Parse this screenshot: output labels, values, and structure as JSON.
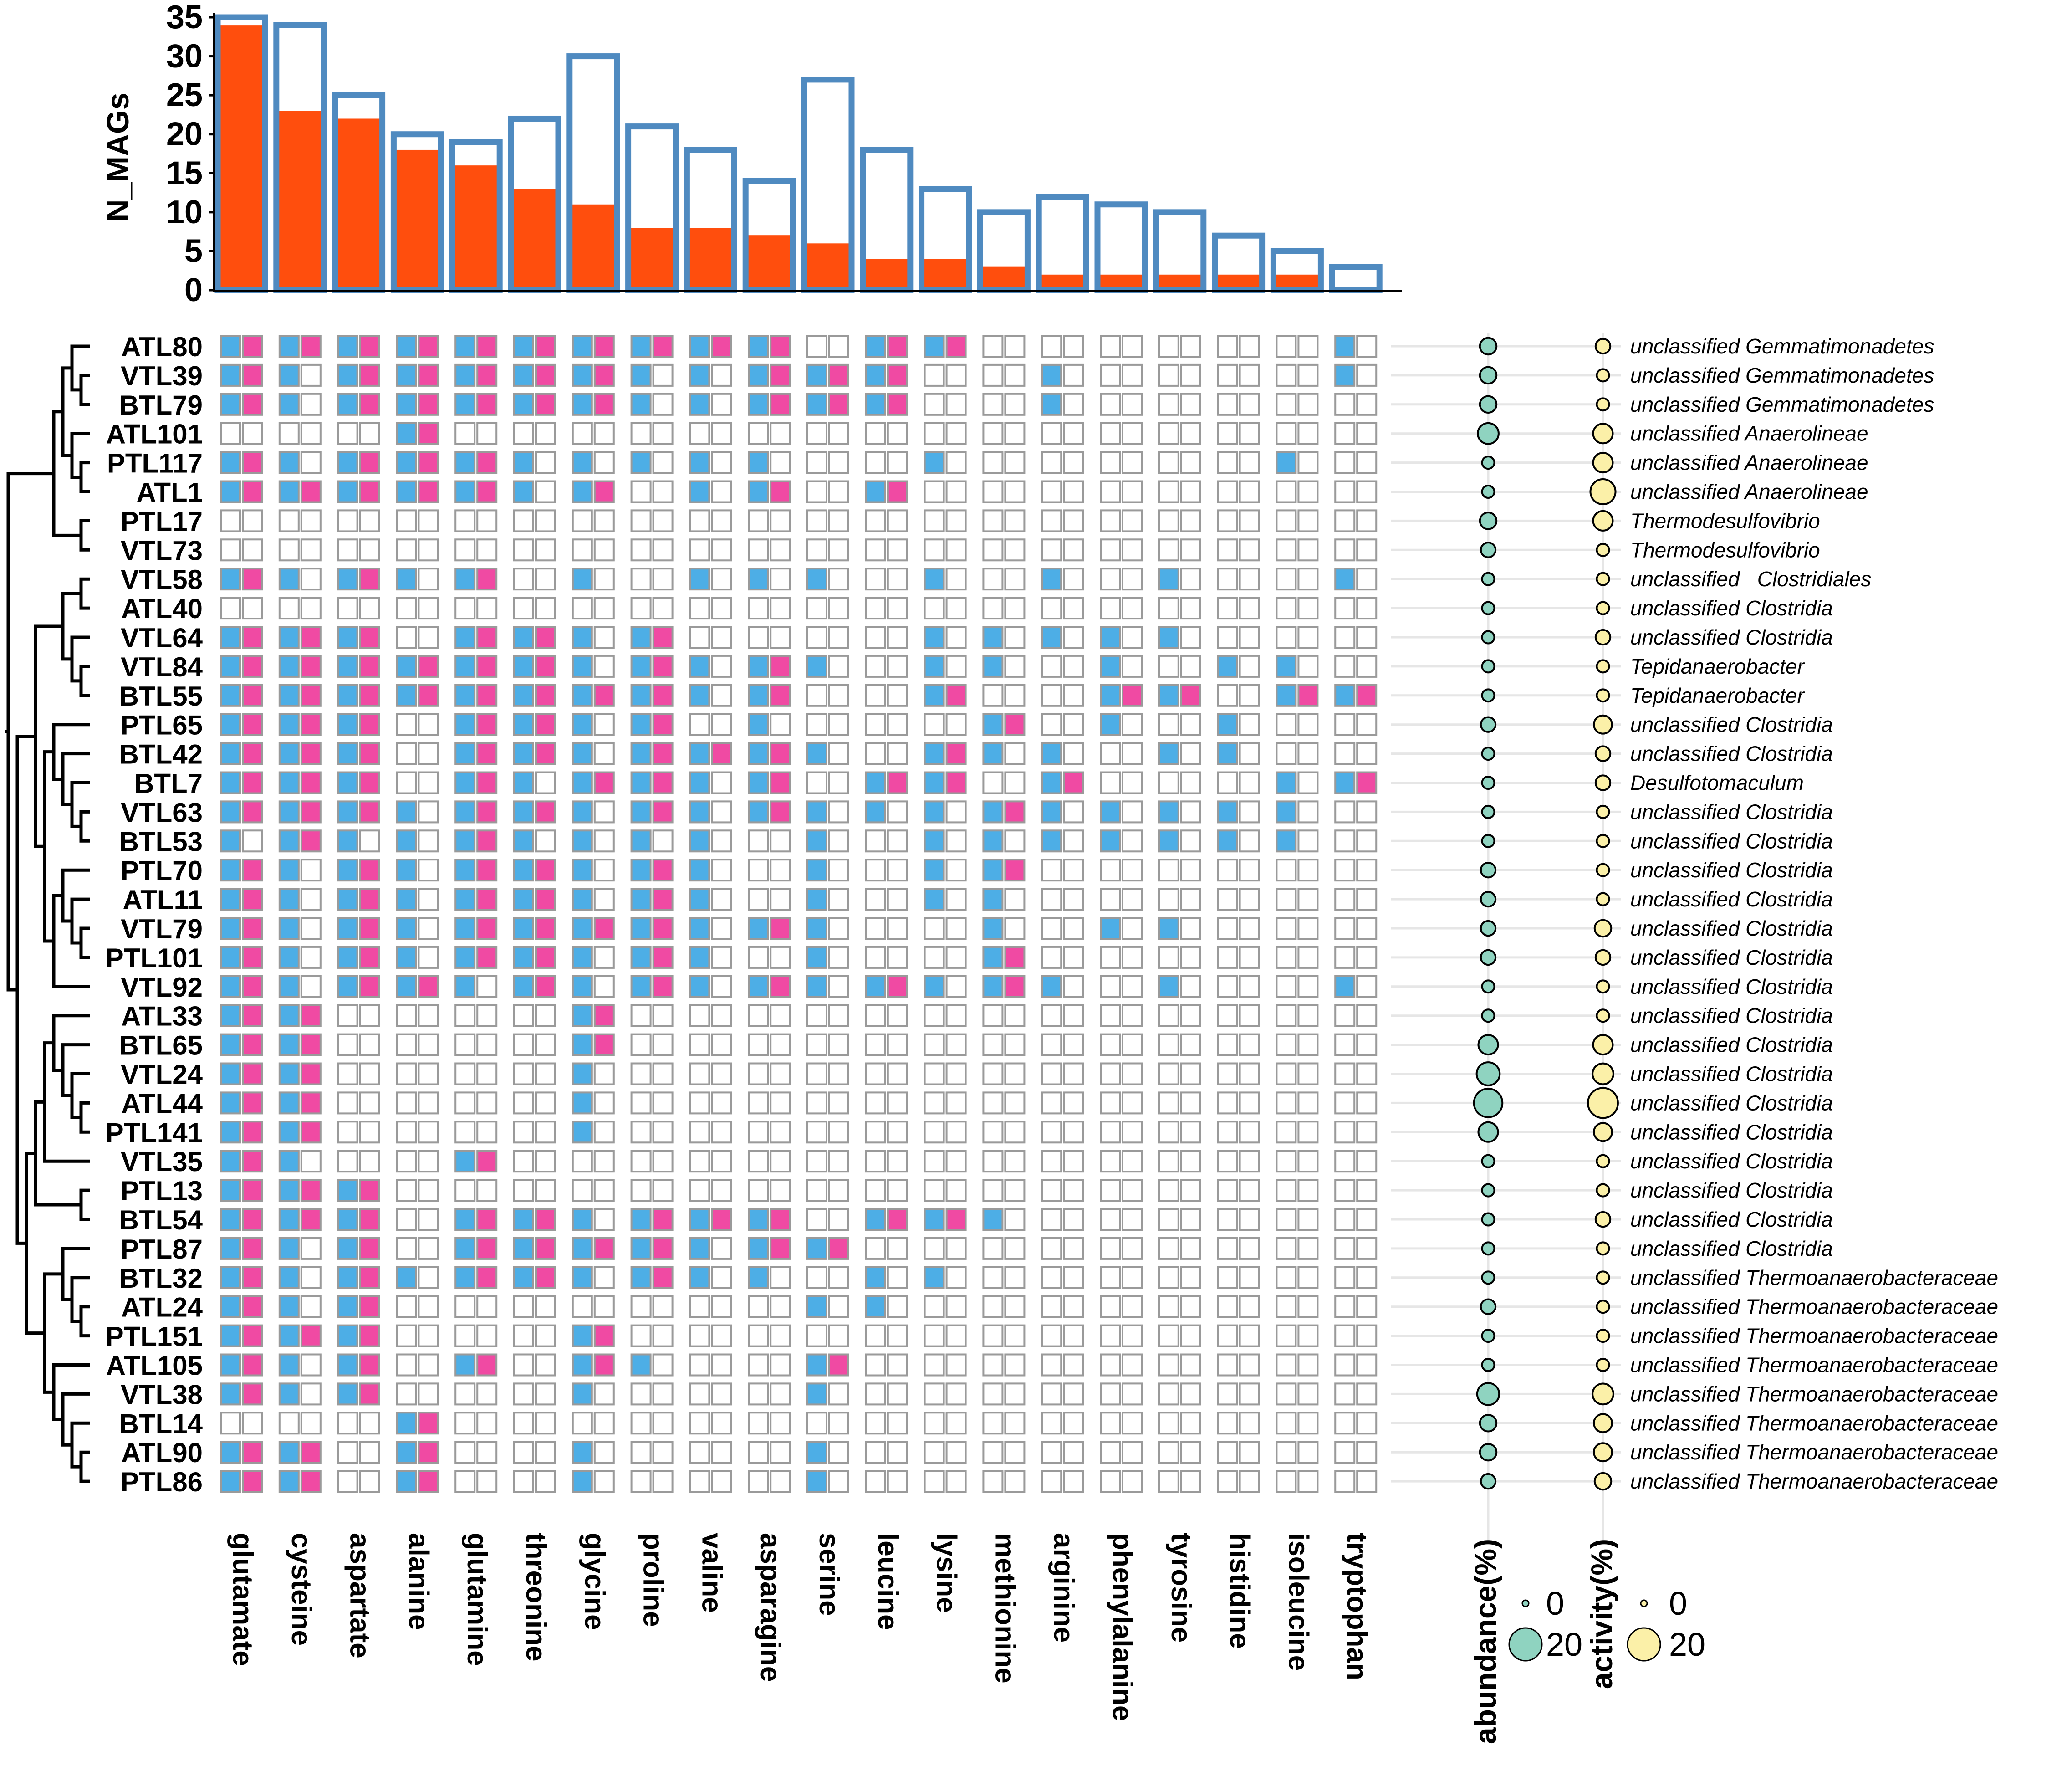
{
  "chart_data": {
    "type": "bar+heatmap+dotplot",
    "bar_chart": {
      "ylabel": "N_MAGs",
      "ylim": [
        0,
        35
      ],
      "yticks": [
        "0",
        "5",
        "10",
        "15",
        "20",
        "25",
        "30",
        "35"
      ],
      "series": [
        {
          "name": "total",
          "values": [
            35,
            34,
            25,
            20,
            19,
            22,
            30,
            21,
            18,
            14,
            27,
            18,
            13,
            10,
            12,
            11,
            10,
            7,
            5,
            3
          ]
        },
        {
          "name": "highlighted",
          "values": [
            34,
            23,
            22,
            18,
            16,
            13,
            11,
            8,
            8,
            7,
            6,
            4,
            4,
            3,
            2,
            2,
            2,
            2,
            2,
            0
          ]
        }
      ]
    },
    "amino_acids": [
      "glutamate",
      "cysteine",
      "aspartate",
      "alanine",
      "glutamine",
      "threonine",
      "glycine",
      "proline",
      "valine",
      "asparagine",
      "serine",
      "leucine",
      "lysine",
      "methionine",
      "arginine",
      "phenylalanine",
      "tyrosine",
      "histidine",
      "isoleucine",
      "tryptophan"
    ],
    "mags": [
      "ATL80",
      "VTL39",
      "BTL79",
      "ATL101",
      "PTL117",
      "ATL1",
      "PTL17",
      "VTL73",
      "VTL58",
      "ATL40",
      "VTL64",
      "VTL84",
      "BTL55",
      "PTL65",
      "BTL42",
      "BTL7",
      "VTL63",
      "BTL53",
      "PTL70",
      "ATL11",
      "VTL79",
      "PTL101",
      "VTL92",
      "ATL33",
      "BTL65",
      "VTL24",
      "ATL44",
      "PTL141",
      "VTL35",
      "PTL13",
      "BTL54",
      "PTL87",
      "BTL32",
      "ATL24",
      "PTL151",
      "ATL105",
      "VTL38",
      "BTL14",
      "ATL90",
      "PTL86"
    ],
    "cell_codes": [
      "33333333330330000001",
      "31333331133300100001",
      "31333331133300100000",
      "00030000000000000000",
      "31333111110010000010",
      "33333130130300000000",
      "00000000000000000000",
      "00000000000000000000",
      "31313010111010101001",
      "00000000000000000000",
      "33303313000011111000",
      "33333313131011010110",
      "33333333130030033033",
      "33303313010003010100",
      "33303313331031101100",
      "33303133130330300013",
      "33313313131113111110",
      "13113111101011111110",
      "31313313101013000000",
      "31313313101011000000",
      "31313333131001011000",
      "31313313101003000000",
      "31331313131313101001",
      "33000030000000000000",
      "33000030000000000000",
      "33000010000000000000",
      "33000010000000000000",
      "33000010000000000000",
      "31003000000000000000",
      "33300000000000000000",
      "33303313330331000000",
      "31303333133000000000",
      "31313313110110000000",
      "31300000001100000000",
      "33300030000000000000",
      "31303031003000000000",
      "31300010001000000000",
      "00030000000000000000",
      "33030010001000000000",
      "33030010001000000000"
    ],
    "abundance_pct": [
      3,
      3,
      3,
      6,
      1,
      1,
      3,
      2,
      1,
      1,
      1,
      1,
      1,
      2,
      1,
      1,
      1,
      1,
      2,
      2,
      2,
      2,
      1,
      1,
      5,
      8,
      14,
      5,
      1,
      1,
      1,
      1,
      1,
      2,
      1,
      1,
      7,
      3,
      3,
      2
    ],
    "activity_pct": [
      2,
      1,
      1,
      5,
      5,
      10,
      5,
      1,
      1,
      1,
      2,
      1,
      1,
      4,
      2,
      2,
      1,
      1,
      1,
      1,
      3,
      2,
      1,
      1,
      5,
      6,
      16,
      4,
      1,
      1,
      2,
      1,
      1,
      1,
      1,
      1,
      6,
      4,
      4,
      3
    ],
    "taxonomy": [
      "unclassified Gemmatimonadetes",
      "unclassified Gemmatimonadetes",
      "unclassified Gemmatimonadetes",
      "unclassified Anaerolineae",
      "unclassified Anaerolineae",
      "unclassified Anaerolineae",
      "Thermodesulfovibrio",
      "Thermodesulfovibrio",
      "unclassified   Clostridiales",
      "unclassified Clostridia",
      "unclassified Clostridia",
      "Tepidanaerobacter",
      "Tepidanaerobacter",
      "unclassified Clostridia",
      "unclassified Clostridia",
      "Desulfotomaculum",
      "unclassified Clostridia",
      "unclassified Clostridia",
      "unclassified Clostridia",
      "unclassified Clostridia",
      "unclassified Clostridia",
      "unclassified Clostridia",
      "unclassified Clostridia",
      "unclassified Clostridia",
      "unclassified Clostridia",
      "unclassified Clostridia",
      "unclassified Clostridia",
      "unclassified Clostridia",
      "unclassified Clostridia",
      "unclassified Clostridia",
      "unclassified Clostridia",
      "unclassified Clostridia",
      "unclassified Thermoanaerobacteraceae",
      "unclassified Thermoanaerobacteraceae",
      "unclassified Thermoanaerobacteraceae",
      "unclassified Thermoanaerobacteraceae",
      "unclassified Thermoanaerobacteraceae",
      "unclassified Thermoanaerobacteraceae",
      "unclassified Thermoanaerobacteraceae",
      "unclassified Thermoanaerobacteraceae"
    ],
    "axis_titles": {
      "abundance": "abundance(%)",
      "activity": "activity(%)"
    },
    "legend": {
      "abundance_small": "0",
      "abundance_large": "20",
      "activity_small": "0",
      "activity_large": "20"
    },
    "colors": {
      "bar_fill": "#ff4e0d",
      "bar_outline": "#4f8ac0",
      "cell_blue": "#4daee6",
      "cell_pink": "#f04aa3",
      "cell_border": "#9a9a9a",
      "abundance_dot": "#8fd3c0",
      "activity_dot": "#fbf0a8",
      "guide_line": "#e6e6e6"
    }
  }
}
